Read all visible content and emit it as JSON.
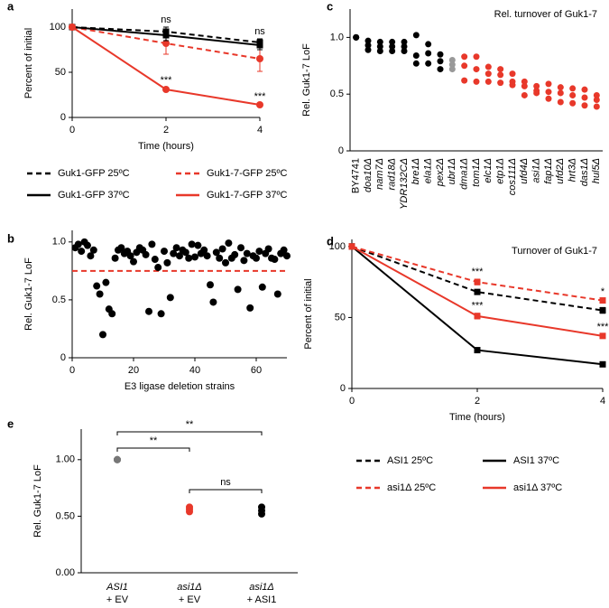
{
  "chart_data": [
    {
      "panel": "a",
      "type": "line",
      "x_label": "Time (hours)",
      "y_label": "Percent of initial",
      "x": [
        0,
        2,
        4
      ],
      "xlim": [
        0,
        4
      ],
      "xticks": [
        0,
        2,
        4
      ],
      "ylim": [
        0,
        120
      ],
      "yticks": [
        0,
        50,
        100
      ],
      "series": [
        {
          "name": "Guk1-GFP 25ºC",
          "color": "#000000",
          "dash": true,
          "marker": "square",
          "values": [
            100,
            95,
            83
          ],
          "errors": [
            0,
            5,
            4
          ]
        },
        {
          "name": "Guk1-7-GFP 25ºC",
          "color": "#e8382a",
          "dash": true,
          "marker": "circle",
          "values": [
            100,
            82,
            65
          ],
          "errors": [
            0,
            12,
            14
          ]
        },
        {
          "name": "Guk1-GFP 37ºC",
          "color": "#000000",
          "dash": false,
          "marker": "square",
          "values": [
            100,
            91,
            80
          ],
          "errors": [
            0,
            6,
            5
          ]
        },
        {
          "name": "Guk1-7-GFP 37ºC",
          "color": "#e8382a",
          "dash": false,
          "marker": "circle",
          "values": [
            100,
            31,
            14
          ],
          "errors": [
            0,
            2,
            1
          ]
        }
      ],
      "annotations": [
        {
          "label": "ns",
          "series": 0,
          "point": 1
        },
        {
          "label": "ns",
          "series": 0,
          "point": 2
        },
        {
          "label": "***",
          "series": 3,
          "point": 1
        },
        {
          "label": "***",
          "series": 3,
          "point": 2
        }
      ],
      "legend": "below"
    },
    {
      "panel": "b",
      "type": "scatter",
      "x_label": "E3 ligase deletion strains",
      "y_label": "Rel. Guk1-7 LoF",
      "x": [
        1,
        2,
        3,
        4,
        5,
        6,
        7,
        8,
        9,
        10,
        11,
        12,
        13,
        14,
        15,
        16,
        17,
        18,
        19,
        20,
        21,
        22,
        23,
        24,
        25,
        26,
        27,
        28,
        29,
        30,
        31,
        32,
        33,
        34,
        35,
        36,
        37,
        38,
        39,
        40,
        41,
        42,
        43,
        44,
        45,
        46,
        47,
        48,
        49,
        50,
        51,
        52,
        53,
        54,
        55,
        56,
        57,
        58,
        59,
        60,
        61,
        62,
        63,
        64,
        65,
        66,
        67,
        68,
        69,
        70
      ],
      "values": [
        0.95,
        0.98,
        0.92,
        1.0,
        0.97,
        0.88,
        0.93,
        0.62,
        0.55,
        0.2,
        0.65,
        0.42,
        0.38,
        0.86,
        0.93,
        0.95,
        0.9,
        0.92,
        0.88,
        0.83,
        0.91,
        0.95,
        0.93,
        0.89,
        0.4,
        0.98,
        0.85,
        0.78,
        0.38,
        0.92,
        0.82,
        0.52,
        0.9,
        0.95,
        0.88,
        0.93,
        0.91,
        0.86,
        0.98,
        0.87,
        0.97,
        0.9,
        0.93,
        0.88,
        0.63,
        0.48,
        0.91,
        0.86,
        0.94,
        0.82,
        0.99,
        0.86,
        0.89,
        0.59,
        0.95,
        0.84,
        0.9,
        0.43,
        0.88,
        0.86,
        0.92,
        0.61,
        0.9,
        0.94,
        0.86,
        0.85,
        0.55,
        0.9,
        0.93,
        0.88
      ],
      "color": "#000000",
      "xlim": [
        0,
        70
      ],
      "xticks": [
        0,
        20,
        40,
        60
      ],
      "ylim": [
        0,
        1.1
      ],
      "yticks": [
        0,
        0.5,
        {
          "value": 1,
          "label": "1.0"
        }
      ],
      "hline": {
        "value": 0.75,
        "color": "#e8382a"
      }
    },
    {
      "panel": "c",
      "type": "strip",
      "title": "Rel. turnover of Guk1-7",
      "y_label": "Rel. Guk1-7 LoF",
      "categories": [
        "BY4741",
        "doa10Δ",
        "nam7Δ",
        "rad18Δ",
        "YDR132CΔ",
        "bre1Δ",
        "ela1Δ",
        "pex2Δ",
        "ubr1Δ",
        "dma1Δ",
        "tom1Δ",
        "elc1Δ",
        "etp1Δ",
        "cos111Δ",
        "ufd4Δ",
        "asi1Δ",
        "fap1Δ",
        "ufd2Δ",
        "hrt3Δ",
        "das1Δ",
        "hul5Δ"
      ],
      "values": [
        [
          1.0,
          1.0,
          1.0
        ],
        [
          0.97,
          0.93,
          0.89
        ],
        [
          0.96,
          0.92,
          0.88
        ],
        [
          0.96,
          0.92,
          0.88
        ],
        [
          0.96,
          0.92,
          0.88
        ],
        [
          1.02,
          0.84,
          0.77
        ],
        [
          0.94,
          0.86,
          0.77
        ],
        [
          0.85,
          0.79,
          0.72
        ],
        [
          0.8,
          0.76,
          0.72
        ],
        [
          0.83,
          0.75,
          0.62
        ],
        [
          0.83,
          0.72,
          0.61
        ],
        [
          0.74,
          0.68,
          0.61
        ],
        [
          0.72,
          0.67,
          0.6
        ],
        [
          0.68,
          0.61,
          0.58
        ],
        [
          0.61,
          0.57,
          0.49
        ],
        [
          0.57,
          0.53,
          0.51
        ],
        [
          0.59,
          0.52,
          0.46
        ],
        [
          0.56,
          0.51,
          0.43
        ],
        [
          0.55,
          0.49,
          0.42
        ],
        [
          0.54,
          0.47,
          0.4
        ],
        [
          0.49,
          0.45,
          0.39
        ]
      ],
      "colors": [
        "#000000",
        "#000000",
        "#000000",
        "#000000",
        "#000000",
        "#000000",
        "#000000",
        "#000000",
        "#999999",
        "#e8382a",
        "#e8382a",
        "#e8382a",
        "#e8382a",
        "#e8382a",
        "#e8382a",
        "#e8382a",
        "#e8382a",
        "#e8382a",
        "#e8382a",
        "#e8382a",
        "#e8382a"
      ],
      "ylim": [
        0,
        1.25
      ],
      "yticks": [
        0,
        0.5,
        {
          "value": 1,
          "label": "1.0"
        }
      ]
    },
    {
      "panel": "d",
      "type": "line",
      "title": "Turnover of Guk1-7",
      "x_label": "Time (hours)",
      "y_label": "Percent of initial",
      "x": [
        0,
        2,
        4
      ],
      "xlim": [
        0,
        4
      ],
      "xticks": [
        0,
        2,
        4
      ],
      "ylim": [
        0,
        105
      ],
      "yticks": [
        0,
        50,
        100
      ],
      "series": [
        {
          "name": "ASI1 25ºC",
          "color": "#000000",
          "dash": true,
          "marker": "square",
          "values": [
            100,
            68,
            55
          ],
          "errors": [
            0,
            1,
            2
          ]
        },
        {
          "name": "ASI1 37ºC",
          "color": "#000000",
          "dash": false,
          "marker": "square",
          "values": [
            100,
            27,
            17
          ],
          "errors": [
            0,
            1,
            1
          ]
        },
        {
          "name": "asi1Δ 25ºC",
          "color": "#e8382a",
          "dash": true,
          "marker": "square",
          "values": [
            100,
            75,
            62
          ],
          "errors": [
            0,
            2,
            1
          ]
        },
        {
          "name": "asi1Δ 37ºC",
          "color": "#e8382a",
          "dash": false,
          "marker": "square",
          "values": [
            100,
            51,
            37
          ],
          "errors": [
            0,
            2,
            1
          ]
        }
      ],
      "annotations": [
        {
          "label": "***",
          "series": 2,
          "point": 1
        },
        {
          "label": "*",
          "series": 2,
          "point": 2
        },
        {
          "label": "***",
          "series": 3,
          "point": 1
        },
        {
          "label": "***",
          "series": 3,
          "point": 2
        }
      ],
      "legend": "below"
    },
    {
      "panel": "e",
      "type": "strip",
      "y_label": "Rel. Guk1-7 LoF",
      "categories": [
        [
          "ASI1",
          "+ EV"
        ],
        [
          "asi1Δ",
          "+ EV"
        ],
        [
          "asi1Δ",
          "+ ASI1"
        ]
      ],
      "values": [
        [
          1.0,
          1.0,
          1.0
        ],
        [
          0.58,
          0.56,
          0.54
        ],
        [
          0.58,
          0.55,
          0.52
        ]
      ],
      "colors": [
        "#777777",
        "#e8382a",
        "#000000"
      ],
      "ylim": [
        0,
        1.27
      ],
      "yticks": [
        {
          "value": 0,
          "label": "0.00"
        },
        {
          "value": 0.5,
          "label": "0.50"
        },
        {
          "value": 1,
          "label": "1.00"
        }
      ],
      "comparisons": [
        {
          "pair": [
            0,
            2
          ],
          "label": "**"
        },
        {
          "pair": [
            0,
            1
          ],
          "label": "**"
        },
        {
          "pair": [
            1,
            2
          ],
          "label": "ns"
        }
      ]
    }
  ]
}
